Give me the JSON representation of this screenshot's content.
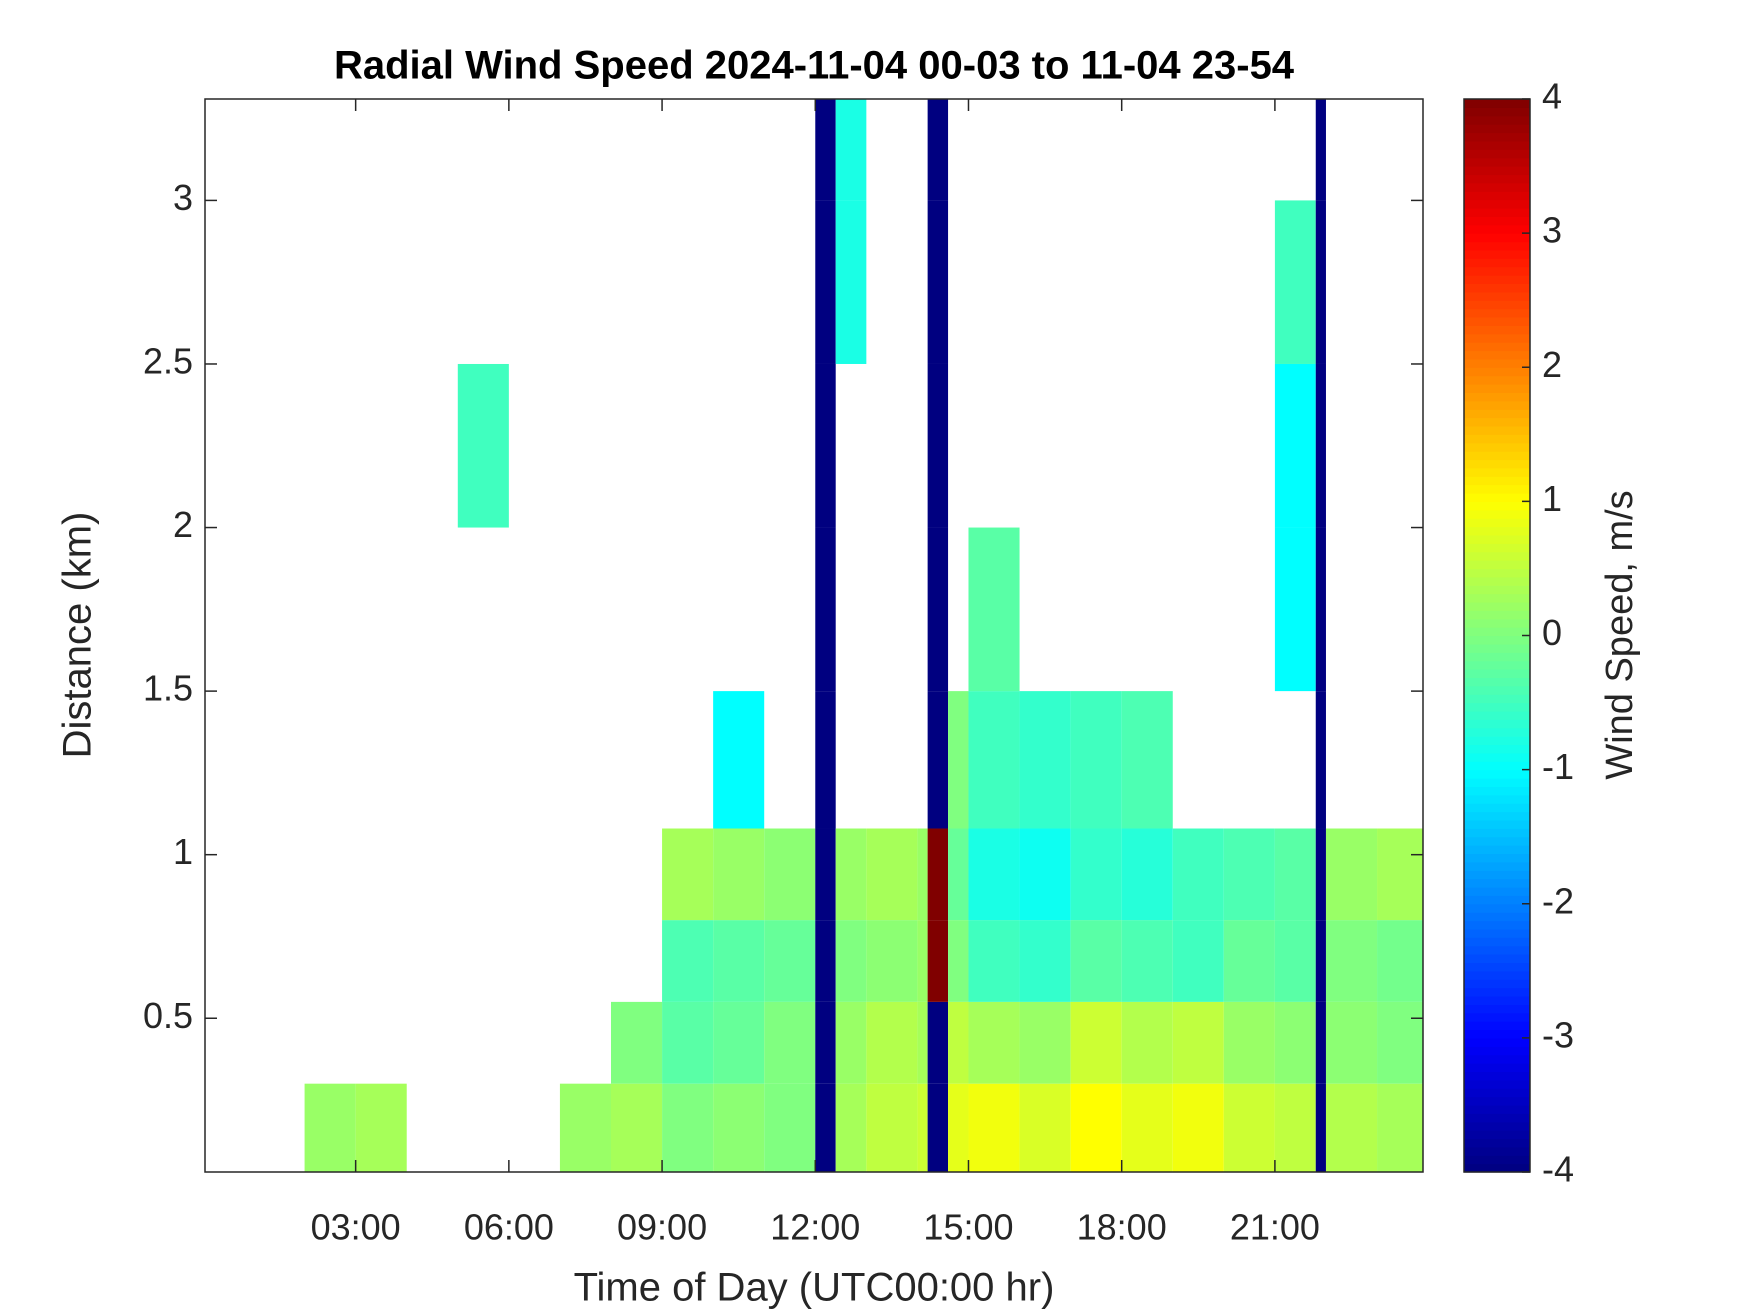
{
  "chart_data": {
    "type": "heatmap",
    "title": "Radial Wind Speed 2024-11-04 00-03 to 11-04 23-54",
    "x_label": "Time of Day (UTC00:00 hr)",
    "y_label": "Distance (km)",
    "colorbar_label": "Wind Speed, m/s",
    "colormap": "jet",
    "xlim": [
      0.05,
      23.9
    ],
    "ylim": [
      0.03,
      3.31
    ],
    "clim": [
      -4,
      4
    ],
    "xticks": [
      {
        "value": 3,
        "label": "03:00"
      },
      {
        "value": 6,
        "label": "06:00"
      },
      {
        "value": 9,
        "label": "09:00"
      },
      {
        "value": 12,
        "label": "12:00"
      },
      {
        "value": 15,
        "label": "15:00"
      },
      {
        "value": 18,
        "label": "18:00"
      },
      {
        "value": 21,
        "label": "21:00"
      }
    ],
    "yticks": [
      0.5,
      1,
      1.5,
      2,
      2.5,
      3
    ],
    "cticks": [
      -4,
      -3,
      -2,
      -1,
      0,
      1,
      2,
      3,
      4
    ],
    "x_edges": [
      0.05,
      1,
      2,
      3,
      4,
      5,
      6,
      7,
      8,
      9,
      10,
      11,
      12,
      12.4,
      13,
      14,
      14.2,
      14.6,
      15,
      16,
      17,
      18,
      19,
      20,
      21,
      21.8,
      22,
      23,
      23.9
    ],
    "y_edges": [
      0.03,
      0.3,
      0.55,
      0.8,
      1.08,
      1.5,
      2.0,
      2.5,
      3.0,
      3.31
    ],
    "z": [
      [
        null,
        null,
        0.2,
        0.3,
        null,
        null,
        null,
        0.2,
        0.3,
        0,
        0.1,
        0,
        -4,
        0.3,
        0.5,
        0.6,
        -4,
        0.8,
        0.9,
        0.7,
        1.0,
        0.8,
        0.9,
        0.6,
        0.5,
        -4,
        0.4,
        0.3
      ],
      [
        null,
        null,
        null,
        null,
        null,
        null,
        null,
        null,
        0,
        -0.3,
        -0.2,
        0,
        -4,
        0.2,
        0.4,
        0.3,
        -4,
        0.5,
        0.3,
        0.2,
        0.6,
        0.4,
        0.5,
        0.2,
        0.1,
        -4,
        0.1,
        0
      ],
      [
        null,
        null,
        null,
        null,
        null,
        null,
        null,
        null,
        null,
        -0.4,
        -0.3,
        -0.2,
        -4,
        0,
        0.1,
        0.2,
        4,
        0,
        -0.5,
        -0.6,
        -0.3,
        -0.4,
        -0.5,
        -0.2,
        -0.3,
        -4,
        0,
        -0.1
      ],
      [
        null,
        null,
        null,
        null,
        null,
        null,
        null,
        null,
        null,
        0.3,
        0.2,
        0.1,
        -4,
        0.2,
        0.3,
        0.2,
        4,
        -0.2,
        -0.8,
        -0.9,
        -0.6,
        -0.7,
        -0.5,
        -0.4,
        -0.3,
        -4,
        0.2,
        0.3
      ],
      [
        null,
        null,
        null,
        null,
        null,
        null,
        null,
        null,
        null,
        null,
        -1,
        null,
        -4,
        null,
        null,
        null,
        -4,
        0,
        -0.5,
        -0.6,
        -0.5,
        -0.4,
        null,
        null,
        null,
        -4,
        null,
        null
      ],
      [
        null,
        null,
        null,
        null,
        null,
        null,
        null,
        null,
        null,
        null,
        null,
        null,
        -4,
        null,
        null,
        null,
        -4,
        null,
        -0.3,
        null,
        null,
        null,
        null,
        null,
        -1,
        -4,
        null,
        null
      ],
      [
        null,
        null,
        null,
        null,
        null,
        -0.5,
        null,
        null,
        null,
        null,
        null,
        null,
        -4,
        null,
        null,
        null,
        -4,
        null,
        null,
        null,
        null,
        null,
        null,
        null,
        -1,
        -4,
        null,
        null
      ],
      [
        null,
        null,
        null,
        null,
        null,
        null,
        null,
        null,
        null,
        null,
        null,
        null,
        -4,
        -0.8,
        null,
        null,
        -4,
        null,
        null,
        null,
        null,
        null,
        null,
        null,
        -0.5,
        -4,
        null,
        null
      ],
      [
        null,
        null,
        null,
        null,
        null,
        null,
        null,
        null,
        null,
        null,
        null,
        null,
        -4,
        -0.8,
        null,
        null,
        -4,
        null,
        null,
        null,
        null,
        null,
        null,
        null,
        null,
        -4,
        null,
        null
      ]
    ]
  }
}
